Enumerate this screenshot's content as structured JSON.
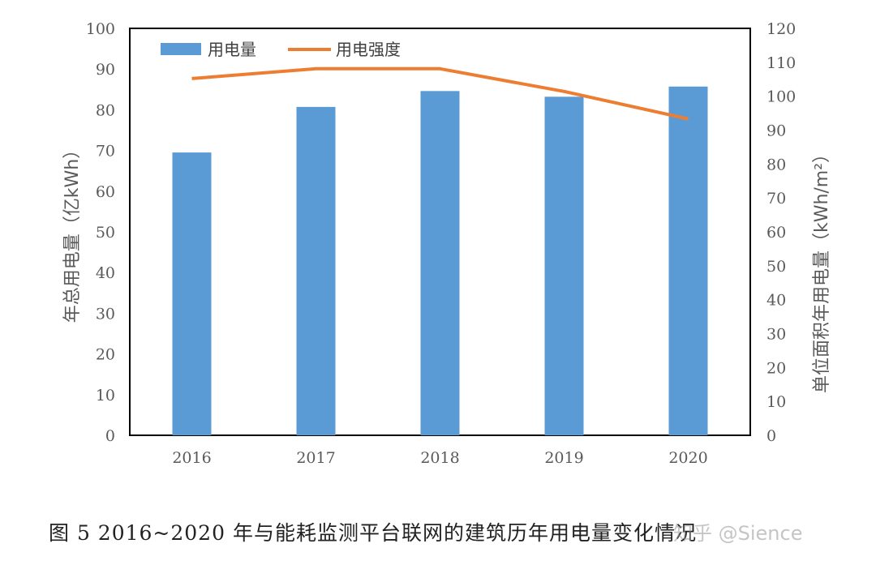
{
  "chart_data": {
    "type": "bar",
    "categories": [
      "2016",
      "2017",
      "2018",
      "2019",
      "2020"
    ],
    "series": [
      {
        "name": "用电量",
        "type": "bar",
        "axis": "left",
        "color": "#5B9BD5",
        "values": [
          69.5,
          80.7,
          84.6,
          83.2,
          85.7
        ]
      },
      {
        "name": "用电强度",
        "type": "line",
        "axis": "right",
        "color": "#ED7D31",
        "values": [
          105.2,
          108.1,
          108.1,
          101.4,
          93.3
        ]
      }
    ],
    "ylabel": "年总用电量（亿kWh）",
    "ylabel_right": "单位面积年用电量（kWh/m²）",
    "ylim": [
      0,
      100
    ],
    "ylim_right": [
      0,
      120
    ],
    "yticks": [
      "0",
      "10",
      "20",
      "30",
      "40",
      "50",
      "60",
      "70",
      "80",
      "90",
      "100"
    ],
    "yticks_right": [
      "0",
      "10",
      "20",
      "30",
      "40",
      "50",
      "60",
      "70",
      "80",
      "90",
      "100",
      "110",
      "120"
    ],
    "grid": false,
    "legend_placement": "top-left"
  },
  "caption": "图 5   2016~2020 年与能耗监测平台联网的建筑历年用电量变化情况",
  "watermark": "知乎 @Sience"
}
